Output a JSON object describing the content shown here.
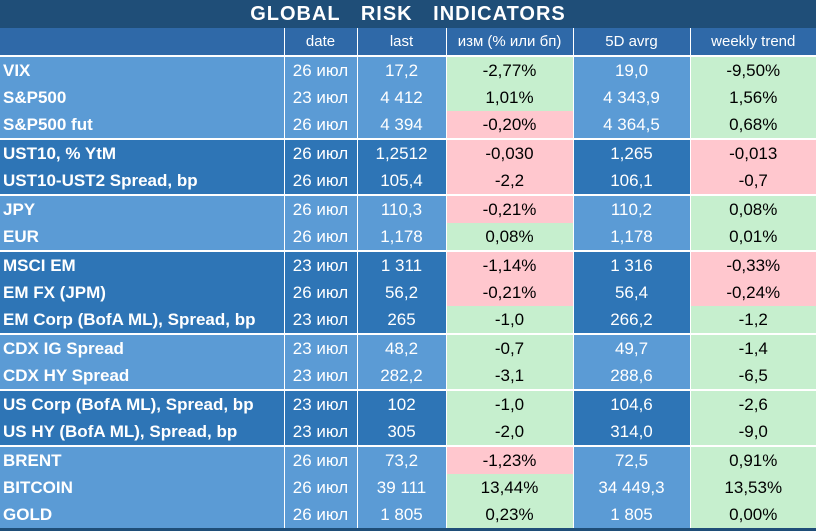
{
  "title": "GLOBAL   RISK   INDICATORS",
  "headers": [
    "",
    "date",
    "last",
    "изм (% или бп)",
    "5D avrg",
    "weekly trend"
  ],
  "groups": [
    {
      "rows": [
        {
          "name": "VIX",
          "date": "26 июл",
          "last": "17,2",
          "chg": "-2,77%",
          "chg_sign": "pos",
          "avg": "19,0",
          "trend": "-9,50%",
          "trend_sign": "pos"
        },
        {
          "name": "S&P500",
          "date": "23 июл",
          "last": "4 412",
          "chg": "1,01%",
          "chg_sign": "pos",
          "avg": "4 343,9",
          "trend": "1,56%",
          "trend_sign": "pos"
        },
        {
          "name": "S&P500 fut",
          "date": "26 июл",
          "last": "4 394",
          "chg": "-0,20%",
          "chg_sign": "neg",
          "avg": "4 364,5",
          "trend": "0,68%",
          "trend_sign": "pos"
        }
      ]
    },
    {
      "rows": [
        {
          "name": "UST10, % YtM",
          "date": "26 июл",
          "last": "1,2512",
          "chg": "-0,030",
          "chg_sign": "neg",
          "avg": "1,265",
          "trend": "-0,013",
          "trend_sign": "neg"
        },
        {
          "name": "UST10-UST2 Spread, bp",
          "date": "26 июл",
          "last": "105,4",
          "chg": "-2,2",
          "chg_sign": "neg",
          "avg": "106,1",
          "trend": "-0,7",
          "trend_sign": "neg"
        }
      ]
    },
    {
      "rows": [
        {
          "name": "JPY",
          "date": "26 июл",
          "last": "110,3",
          "chg": "-0,21%",
          "chg_sign": "neg",
          "avg": "110,2",
          "trend": "0,08%",
          "trend_sign": "pos"
        },
        {
          "name": "EUR",
          "date": "26 июл",
          "last": "1,178",
          "chg": "0,08%",
          "chg_sign": "pos",
          "avg": "1,178",
          "trend": "0,01%",
          "trend_sign": "pos"
        }
      ]
    },
    {
      "rows": [
        {
          "name": "MSCI EM",
          "date": "23 июл",
          "last": "1 311",
          "chg": "-1,14%",
          "chg_sign": "neg",
          "avg": "1 316",
          "trend": "-0,33%",
          "trend_sign": "neg"
        },
        {
          "name": "EM FX (JPM)",
          "date": "26 июл",
          "last": "56,2",
          "chg": "-0,21%",
          "chg_sign": "neg",
          "avg": "56,4",
          "trend": "-0,24%",
          "trend_sign": "neg"
        },
        {
          "name": "EM Corp (BofA ML), Spread, bp",
          "date": "23 июл",
          "last": "265",
          "chg": "-1,0",
          "chg_sign": "pos",
          "avg": "266,2",
          "trend": "-1,2",
          "trend_sign": "pos"
        }
      ]
    },
    {
      "rows": [
        {
          "name": "CDX IG Spread",
          "date": "23 июл",
          "last": "48,2",
          "chg": "-0,7",
          "chg_sign": "pos",
          "avg": "49,7",
          "trend": "-1,4",
          "trend_sign": "pos"
        },
        {
          "name": "CDX HY Spread",
          "date": "23 июл",
          "last": "282,2",
          "chg": "-3,1",
          "chg_sign": "pos",
          "avg": "288,6",
          "trend": "-6,5",
          "trend_sign": "pos"
        }
      ]
    },
    {
      "rows": [
        {
          "name": "US Corp (BofA ML), Spread, bp",
          "date": "23 июл",
          "last": "102",
          "chg": "-1,0",
          "chg_sign": "pos",
          "avg": "104,6",
          "trend": "-2,6",
          "trend_sign": "pos"
        },
        {
          "name": "US HY (BofA ML), Spread, bp",
          "date": "23 июл",
          "last": "305",
          "chg": "-2,0",
          "chg_sign": "pos",
          "avg": "314,0",
          "trend": "-9,0",
          "trend_sign": "pos"
        }
      ]
    },
    {
      "rows": [
        {
          "name": "BRENT",
          "date": "26 июл",
          "last": "73,2",
          "chg": "-1,23%",
          "chg_sign": "neg",
          "avg": "72,5",
          "trend": "0,91%",
          "trend_sign": "pos"
        },
        {
          "name": "BITCOIN",
          "date": "26 июл",
          "last": "39 111",
          "chg": "13,44%",
          "chg_sign": "pos",
          "avg": "34 449,3",
          "trend": "13,53%",
          "trend_sign": "pos"
        },
        {
          "name": "GOLD",
          "date": "26 июл",
          "last": "1 805",
          "chg": "0,23%",
          "chg_sign": "pos",
          "avg": "1 805",
          "trend": "0,00%",
          "trend_sign": "pos"
        }
      ]
    }
  ]
}
